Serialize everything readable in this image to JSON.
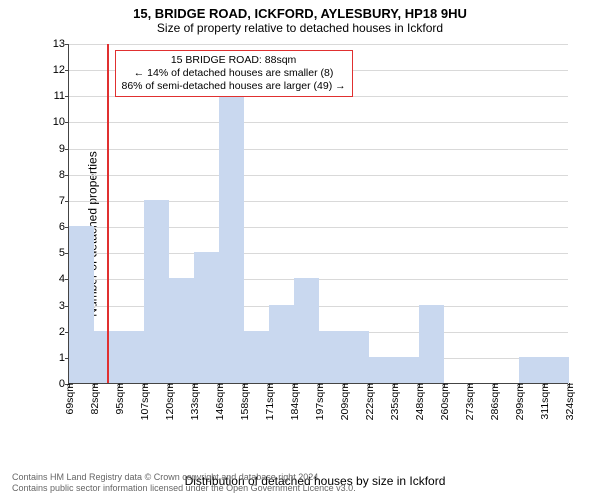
{
  "title_main": "15, BRIDGE ROAD, ICKFORD, AYLESBURY, HP18 9HU",
  "title_sub": "Size of property relative to detached houses in Ickford",
  "ylabel": "Number of detached properties",
  "xlabel": "Distribution of detached houses by size in Ickford",
  "footer_line1": "Contains HM Land Registry data © Crown copyright and database right 2024.",
  "footer_line2": "Contains public sector information licensed under the Open Government Licence v3.0.",
  "chart": {
    "type": "histogram",
    "bar_color": "#c9d8ef",
    "background_color": "#ffffff",
    "grid_color": "#d9d9d9",
    "axis_color": "#444444",
    "marker_color": "#e03030",
    "ylim": [
      0,
      13
    ],
    "yticks": [
      0,
      1,
      2,
      3,
      4,
      5,
      6,
      7,
      8,
      9,
      10,
      11,
      12,
      13
    ],
    "xticks": [
      "69sqm",
      "82sqm",
      "95sqm",
      "107sqm",
      "120sqm",
      "133sqm",
      "146sqm",
      "158sqm",
      "171sqm",
      "184sqm",
      "197sqm",
      "209sqm",
      "222sqm",
      "235sqm",
      "248sqm",
      "260sqm",
      "273sqm",
      "286sqm",
      "299sqm",
      "311sqm",
      "324sqm"
    ],
    "bars": [
      6,
      2,
      2,
      7,
      4,
      5,
      11,
      2,
      3,
      4,
      2,
      2,
      1,
      1,
      3,
      0,
      0,
      0,
      1,
      1
    ],
    "marker_bin_index": 1,
    "marker_position_in_bin": 0.5,
    "annotation": {
      "line1": "15 BRIDGE ROAD: 88sqm",
      "line2": "← 14% of detached houses are smaller (8)",
      "line3": "86% of semi-detached houses are larger (49) →"
    },
    "title_fontsize": 13,
    "subtitle_fontsize": 12,
    "label_fontsize": 12,
    "tick_fontsize": 11,
    "xtick_fontsize": 10.5,
    "annot_fontsize": 10.5
  }
}
